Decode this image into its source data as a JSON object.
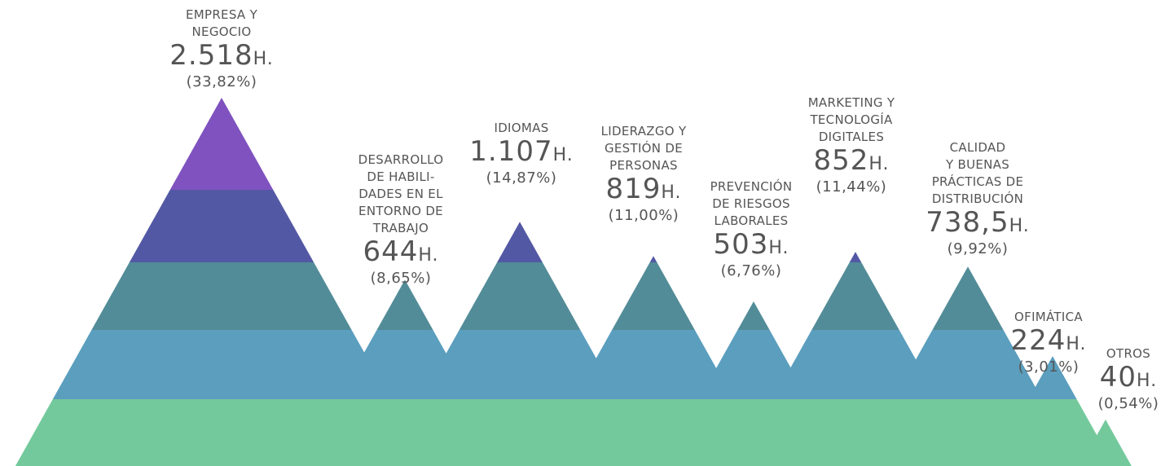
{
  "chart_data": {
    "type": "mountain",
    "categories": [
      "EMPRESA Y\nNEGOCIO",
      "DESARROLLO\nDE HABILI-\nDADES EN EL\nENTORNO DE\nTRABAJO",
      "IDIOMAS",
      "LIDERAZGO Y\nGESTIÓN DE\nPERSONAS",
      "PREVENCIÓN\nDE RIESGOS\nLABORALES",
      "MARKETING Y\nTECNOLOGÍA\nDIGITALES",
      "CALIDAD\nY BUENAS\nPRÁCTICAS DE\nDISTRIBUCIÓN",
      "OFIMÁTICA",
      "OTROS"
    ],
    "values": [
      2518,
      644,
      1107,
      819,
      503,
      852,
      738.5,
      224,
      40
    ],
    "value_labels": [
      "2.518",
      "644",
      "1.107",
      "819",
      "503",
      "852",
      "738,5",
      "224",
      "40"
    ],
    "unit": "H.",
    "percentages": [
      33.82,
      8.65,
      14.87,
      11.0,
      6.76,
      11.44,
      9.92,
      3.01,
      0.54
    ],
    "percentage_labels": [
      "(33,82%)",
      "(8,65%)",
      "(14,87%)",
      "(11,00%)",
      "(6,76%)",
      "(11,44%)",
      "(9,92%)",
      "(3,01%)",
      "(0,54%)"
    ],
    "band_colors": [
      "#73c99b",
      "#5b9ebe",
      "#528c98",
      "#5358a4",
      "#7f52bf"
    ]
  }
}
